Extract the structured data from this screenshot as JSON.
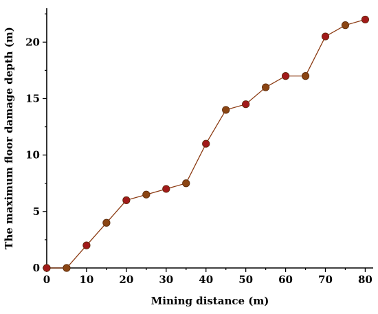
{
  "chart_data": {
    "type": "line",
    "title": "",
    "xlabel": "Mining distance (m)",
    "ylabel": "The maximum floor damage depth (m)",
    "xlim": [
      0,
      82
    ],
    "ylim": [
      0,
      23
    ],
    "x_ticks": [
      0,
      10,
      20,
      30,
      40,
      50,
      60,
      70,
      80
    ],
    "y_ticks": [
      0,
      5,
      10,
      15,
      20
    ],
    "grid": false,
    "legend": "none",
    "series": [
      {
        "x": [
          0,
          5,
          10,
          15,
          20,
          25,
          30,
          35,
          40,
          45,
          50,
          55,
          60,
          65,
          70,
          75,
          80
        ],
        "values": [
          0,
          0,
          2,
          4,
          6,
          6.5,
          7,
          7.5,
          11,
          14,
          14.5,
          16,
          17,
          17,
          20.5,
          21.5,
          22
        ],
        "line_color": "#8b3a12",
        "marker_colors": [
          "#a11a1a",
          "#8b4513"
        ]
      }
    ]
  }
}
